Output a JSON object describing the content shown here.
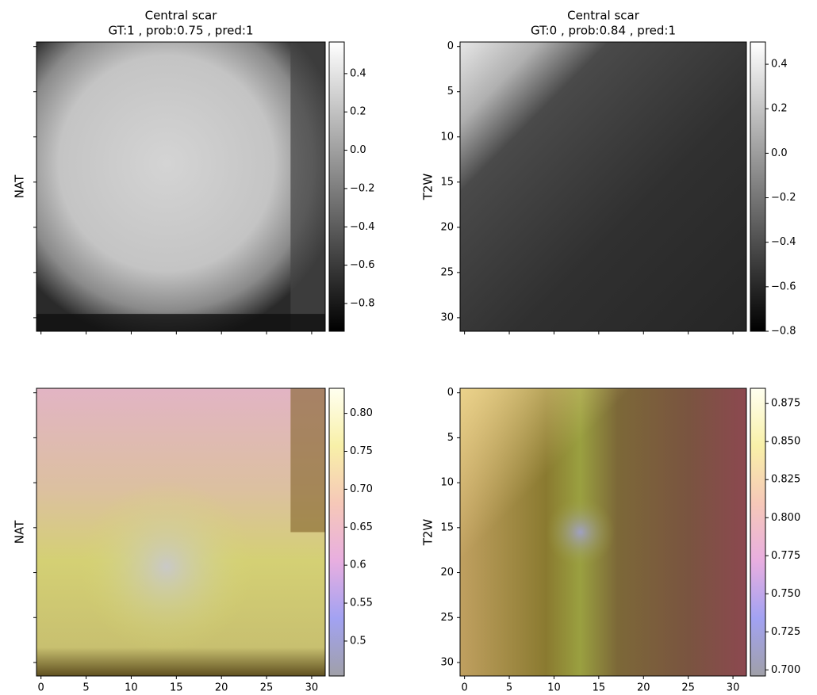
{
  "chart_data": [
    {
      "type": "image",
      "title": "Central scar",
      "subtitle": "GT:1 , prob:0.75 , pred:1",
      "y_label": "NAT",
      "xlim": [
        -0.5,
        31.5
      ],
      "ylim": [
        31.5,
        -0.5
      ],
      "xticks": [
        0,
        5,
        10,
        15,
        20,
        25,
        30
      ],
      "yticks": [
        0,
        5,
        10,
        15,
        20,
        25,
        30
      ],
      "xtick_labels": false,
      "ytick_labels": false,
      "cmap": [
        "#000000",
        "#ffffff"
      ],
      "clim": [
        -0.945,
        0.565
      ],
      "cticks": [
        {
          "value": -0.8,
          "label": "−0.8"
        },
        {
          "value": -0.6,
          "label": "−0.6"
        },
        {
          "value": -0.4,
          "label": "−0.4"
        },
        {
          "value": -0.2,
          "label": "−0.2"
        },
        {
          "value": 0,
          "label": "0.0"
        },
        0.2,
        0.4
      ]
    },
    {
      "type": "image",
      "title": "Central scar",
      "subtitle": "GT:0 , prob:0.84 , pred:1",
      "y_label": "T2W",
      "xlim": [
        -0.5,
        31.5
      ],
      "ylim": [
        31.5,
        -0.5
      ],
      "xticks": [
        0,
        5,
        10,
        15,
        20,
        25,
        30
      ],
      "yticks": [
        0,
        5,
        10,
        15,
        20,
        25,
        30
      ],
      "xtick_labels": false,
      "ytick_labels": true,
      "cmap": [
        "#000000",
        "#ffffff"
      ],
      "clim": [
        -0.8,
        0.5
      ],
      "cticks": [
        {
          "value": -0.8,
          "label": "−0.8"
        },
        {
          "value": -0.6,
          "label": "−0.6"
        },
        {
          "value": -0.4,
          "label": "−0.4"
        },
        {
          "value": -0.2,
          "label": "−0.2"
        },
        {
          "value": 0,
          "label": "0.0"
        },
        0.2,
        0.4
      ]
    },
    {
      "type": "image",
      "y_label": "NAT",
      "xlim": [
        -0.5,
        31.5
      ],
      "ylim": [
        31.5,
        -0.5
      ],
      "xticks": [
        0,
        5,
        10,
        15,
        20,
        25,
        30
      ],
      "yticks": [
        0,
        5,
        10,
        15,
        20,
        25,
        30
      ],
      "xtick_labels": true,
      "ytick_labels": false,
      "cmap": [
        "#a0a0a8",
        "#a2a2f2",
        "#e8aee0",
        "#f6c8b8",
        "#f8f0a8",
        "#fffff0"
      ],
      "clim": [
        0.454,
        0.833
      ],
      "cticks": [
        0.5,
        0.55,
        0.6,
        0.65,
        {
          "value": 0.7,
          "label": "0.70"
        },
        0.75,
        {
          "value": 0.8,
          "label": "0.80"
        }
      ]
    },
    {
      "type": "image",
      "y_label": "T2W",
      "xlim": [
        -0.5,
        31.5
      ],
      "ylim": [
        31.5,
        -0.5
      ],
      "xticks": [
        0,
        5,
        10,
        15,
        20,
        25,
        30
      ],
      "yticks": [
        0,
        5,
        10,
        15,
        20,
        25,
        30
      ],
      "xtick_labels": true,
      "ytick_labels": true,
      "cmap": [
        "#a0a0a8",
        "#a2a2f2",
        "#e8aee0",
        "#f6c8b8",
        "#f8f0a8",
        "#fffff0"
      ],
      "clim": [
        0.696,
        0.885
      ],
      "cticks": [
        {
          "value": 0.7,
          "label": "0.700"
        },
        0.725,
        {
          "value": 0.75,
          "label": "0.750"
        },
        0.775,
        {
          "value": 0.8,
          "label": "0.800"
        },
        0.825,
        {
          "value": 0.85,
          "label": "0.850"
        },
        0.875
      ]
    }
  ]
}
